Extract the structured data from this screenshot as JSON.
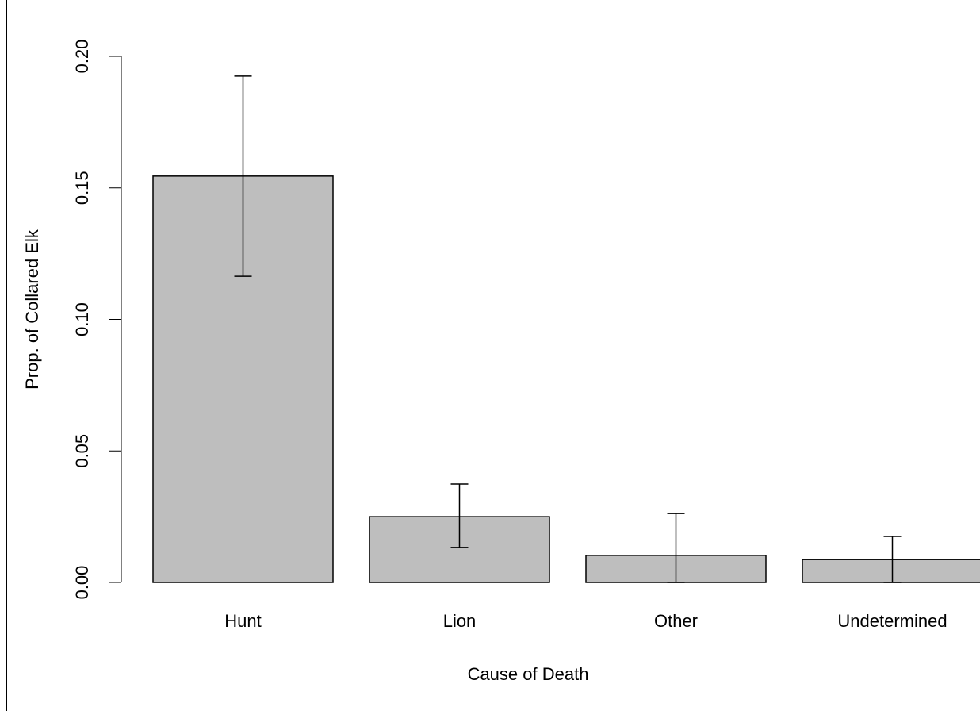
{
  "chart_data": {
    "type": "bar",
    "x_label": "Cause of Death",
    "y_label": "Prop. of Collared Elk",
    "categories": [
      "Hunt",
      "Lion",
      "Other",
      "Undetermined"
    ],
    "values": [
      0.1545,
      0.025,
      0.0103,
      0.0087
    ],
    "ci_lower": [
      0.1164,
      0.0133,
      0,
      0
    ],
    "ci_upper": [
      0.1925,
      0.0374,
      0.0262,
      0.0175
    ],
    "color": "#bebebe",
    "ylim": [
      0,
      0.2
    ],
    "yticks": [
      {
        "value": 0,
        "label": "0.00"
      },
      0.05,
      {
        "value": 0.1,
        "label": "0.10"
      },
      0.15,
      {
        "value": 0.2,
        "label": "0.20"
      }
    ],
    "grid": false
  }
}
